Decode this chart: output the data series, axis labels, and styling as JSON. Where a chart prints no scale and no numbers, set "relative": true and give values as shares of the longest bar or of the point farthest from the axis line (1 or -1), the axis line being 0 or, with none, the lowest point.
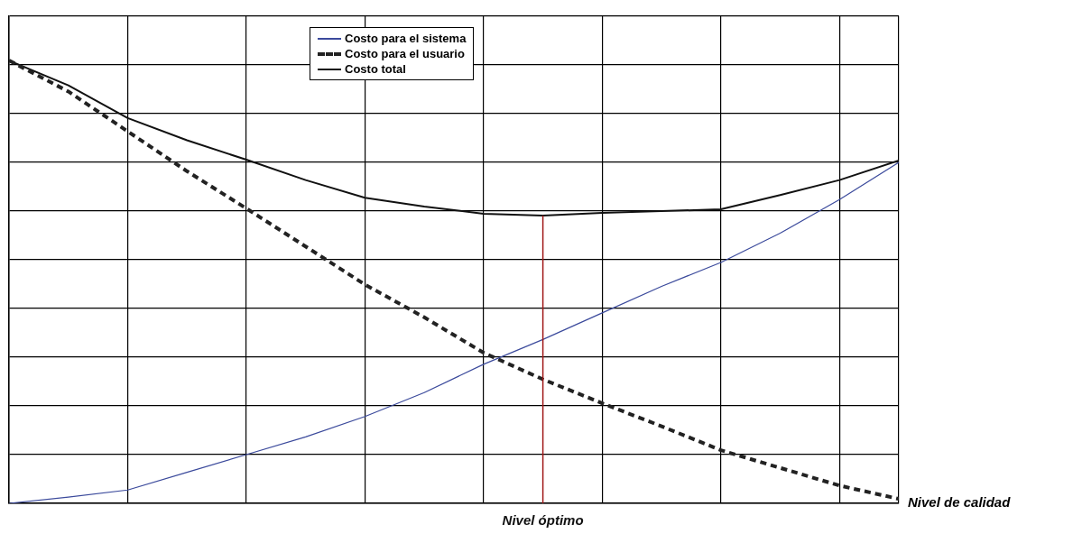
{
  "chart_data": {
    "type": "line",
    "relative": true,
    "xlabel": "Nivel de calidad",
    "categories": [
      null,
      null,
      null,
      null,
      null,
      null,
      null,
      null,
      null,
      null,
      null,
      null,
      null,
      null,
      null,
      null
    ],
    "tick_labels": false,
    "grid": true,
    "legend": "top",
    "marker": "none",
    "series": [
      {
        "name": "Costo para el sistema",
        "color": "#3b4a9c",
        "line_style": "solid",
        "values": [
          0,
          0.014,
          0.03,
          0.07,
          0.11,
          0.15,
          0.196,
          0.25,
          0.314,
          0.37,
          0.43,
          0.49,
          0.544,
          0.61,
          0.686,
          0.77
        ]
      },
      {
        "name": "Costo para el usuario",
        "color": "#222222",
        "line_style": "dashed",
        "values": [
          1,
          0.93,
          0.84,
          0.75,
          0.666,
          0.58,
          0.494,
          0.42,
          0.34,
          0.28,
          0.226,
          0.174,
          0.12,
          0.08,
          0.04,
          0.01
        ]
      },
      {
        "name": "Costo total",
        "color": "#111111",
        "line_style": "solid",
        "values": [
          1,
          0.944,
          0.87,
          0.82,
          0.776,
          0.73,
          0.69,
          0.67,
          0.654,
          0.65,
          0.656,
          0.66,
          0.664,
          0.696,
          0.73,
          0.774
        ]
      }
    ],
    "annotations": [
      "Nivel óptimo"
    ]
  }
}
